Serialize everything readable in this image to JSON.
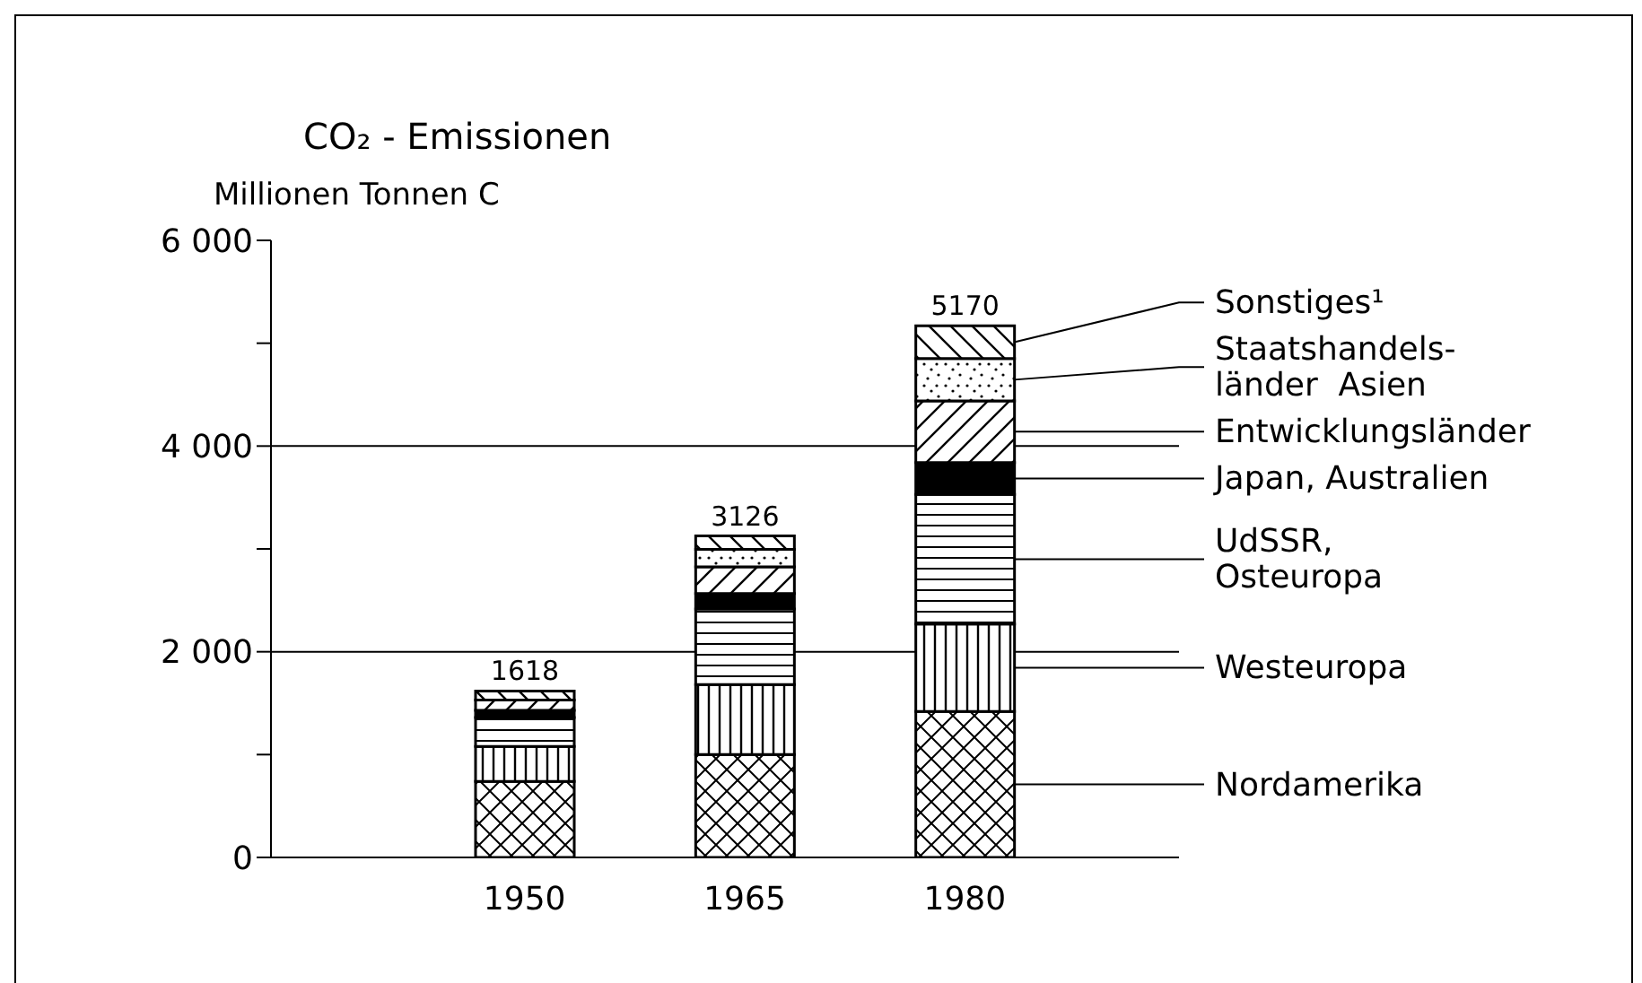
{
  "chart_data": {
    "type": "bar",
    "title": "CO₂ - Emissionen",
    "ylabel": "Millionen Tonnen C",
    "categories": [
      "1950",
      "1965",
      "1980"
    ],
    "stacked": true,
    "series": [
      {
        "name": "Nordamerika",
        "color": "#000000",
        "values": [
          740,
          1000,
          1420
        ]
      },
      {
        "name": "Westeuropa",
        "color": "#000000",
        "values": [
          340,
          680,
          850
        ]
      },
      {
        "name": "UdSSR,\nOsteuropa",
        "color": "#000000",
        "values": [
          280,
          736,
          1260
        ]
      },
      {
        "name": "Japan, Australien",
        "color": "#000000",
        "values": [
          70,
          150,
          310
        ]
      },
      {
        "name": "Entwicklungsländer",
        "color": "#000000",
        "values": [
          100,
          260,
          600
        ]
      },
      {
        "name": "Staatshandels-\nländer  Asien",
        "color": "#000000",
        "values": [
          0,
          170,
          410
        ]
      },
      {
        "name": "Sonstiges¹",
        "color": "#000000",
        "values": [
          88,
          130,
          320
        ]
      }
    ],
    "totals": [
      "1618",
      "3126",
      "5170"
    ],
    "ylim": [
      0,
      6000
    ],
    "yticks": [
      {
        "value": 0,
        "label": "0"
      },
      {
        "value": 1000,
        "label": null
      },
      {
        "value": 2000,
        "label": "2 000"
      },
      {
        "value": 3000,
        "label": null
      },
      {
        "value": 4000,
        "label": "4 000"
      },
      {
        "value": 5000,
        "label": null
      },
      {
        "value": 6000,
        "label": "6 000"
      }
    ],
    "grid": "y",
    "legend": "right"
  }
}
